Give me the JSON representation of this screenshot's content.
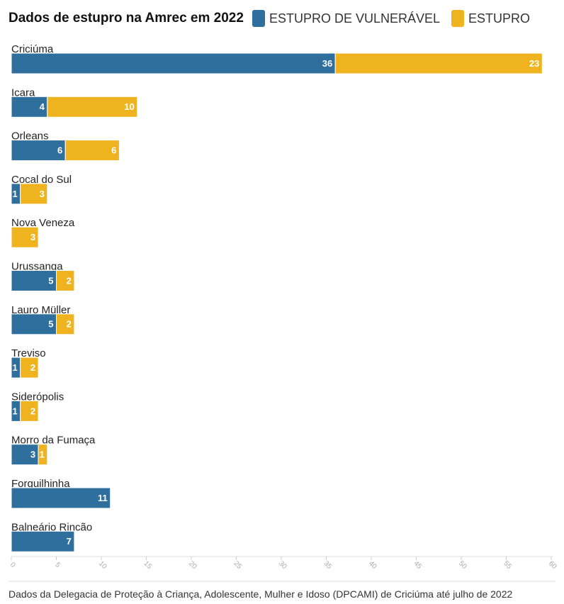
{
  "header": {
    "title": "Dados de estupro na Amrec em 2022"
  },
  "legend": [
    {
      "label": "ESTUPRO DE VULNERÁVEL",
      "color": "#2e6f9e"
    },
    {
      "label": "ESTUPRO",
      "color": "#efb31f"
    }
  ],
  "footer": {
    "source": "Dados da Delegacia de Proteção à Criança, Adolescente, Mulher e Idoso (DPCAMI) de Criciúma até julho de 2022"
  },
  "chart_data": {
    "type": "bar",
    "orientation": "horizontal",
    "stacked": true,
    "title": "Dados de estupro na Amrec em 2022",
    "categories": [
      "Criciúma",
      "Içara",
      "Orleans",
      "Cocal do Sul",
      "Nova Veneza",
      "Urussanga",
      "Lauro Müller",
      "Treviso",
      "Siderópolis",
      "Morro da Fumaça",
      "Forquilhinha",
      "Balneário Rincão"
    ],
    "series": [
      {
        "name": "ESTUPRO DE VULNERÁVEL",
        "color": "#2e6f9e",
        "values": [
          36,
          4,
          6,
          1,
          0,
          5,
          5,
          1,
          1,
          3,
          11,
          7
        ]
      },
      {
        "name": "ESTUPRO",
        "color": "#efb31f",
        "values": [
          23,
          10,
          6,
          3,
          3,
          2,
          2,
          2,
          2,
          1,
          0,
          0
        ]
      }
    ],
    "xlim": [
      0,
      60
    ],
    "xticks": [
      0,
      5,
      10,
      15,
      20,
      25,
      30,
      35,
      40,
      45,
      50,
      55,
      60
    ],
    "legend_position": "top",
    "grid": false
  }
}
